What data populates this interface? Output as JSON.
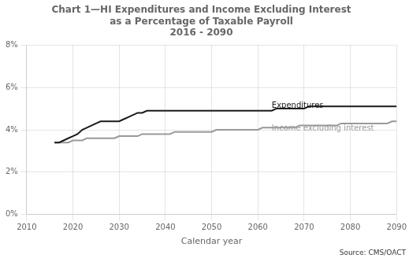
{
  "chart_data": {
    "type": "line",
    "title": [
      "Chart 1—HI Expenditures and Income Excluding Interest",
      "as a Percentage of Taxable Payroll",
      "2016 - 2090"
    ],
    "x_label": "Calendar year",
    "source": "Source: CMS/OACT",
    "x": [
      2016,
      2017,
      2018,
      2019,
      2020,
      2021,
      2022,
      2023,
      2024,
      2025,
      2026,
      2027,
      2028,
      2029,
      2030,
      2031,
      2032,
      2033,
      2034,
      2035,
      2036,
      2037,
      2038,
      2039,
      2040,
      2041,
      2042,
      2043,
      2044,
      2045,
      2046,
      2047,
      2048,
      2049,
      2050,
      2051,
      2052,
      2053,
      2054,
      2055,
      2056,
      2057,
      2058,
      2059,
      2060,
      2061,
      2062,
      2063,
      2064,
      2065,
      2066,
      2067,
      2068,
      2069,
      2070,
      2071,
      2072,
      2073,
      2074,
      2075,
      2076,
      2077,
      2078,
      2079,
      2080,
      2081,
      2082,
      2083,
      2084,
      2085,
      2086,
      2087,
      2088,
      2089,
      2090
    ],
    "series": [
      {
        "name": "Expenditures",
        "color": "#1a1a1a",
        "values": [
          0.034,
          0.034,
          0.035,
          0.036,
          0.037,
          0.038,
          0.04,
          0.041,
          0.042,
          0.043,
          0.044,
          0.044,
          0.044,
          0.044,
          0.044,
          0.045,
          0.046,
          0.047,
          0.048,
          0.048,
          0.049,
          0.049,
          0.049,
          0.049,
          0.049,
          0.049,
          0.049,
          0.049,
          0.049,
          0.049,
          0.049,
          0.049,
          0.049,
          0.049,
          0.049,
          0.049,
          0.049,
          0.049,
          0.049,
          0.049,
          0.049,
          0.049,
          0.049,
          0.049,
          0.049,
          0.049,
          0.049,
          0.049,
          0.05,
          0.05,
          0.05,
          0.05,
          0.05,
          0.05,
          0.05,
          0.051,
          0.051,
          0.051,
          0.051,
          0.051,
          0.051,
          0.051,
          0.051,
          0.051,
          0.051,
          0.051,
          0.051,
          0.051,
          0.051,
          0.051,
          0.051,
          0.051,
          0.051,
          0.051,
          0.051
        ]
      },
      {
        "name": "Income excluding interest",
        "color": "#999999",
        "values": [
          0.034,
          0.034,
          0.034,
          0.034,
          0.035,
          0.035,
          0.035,
          0.036,
          0.036,
          0.036,
          0.036,
          0.036,
          0.036,
          0.036,
          0.037,
          0.037,
          0.037,
          0.037,
          0.037,
          0.038,
          0.038,
          0.038,
          0.038,
          0.038,
          0.038,
          0.038,
          0.039,
          0.039,
          0.039,
          0.039,
          0.039,
          0.039,
          0.039,
          0.039,
          0.039,
          0.04,
          0.04,
          0.04,
          0.04,
          0.04,
          0.04,
          0.04,
          0.04,
          0.04,
          0.04,
          0.041,
          0.041,
          0.041,
          0.041,
          0.041,
          0.041,
          0.041,
          0.041,
          0.042,
          0.042,
          0.042,
          0.042,
          0.042,
          0.042,
          0.042,
          0.042,
          0.042,
          0.043,
          0.043,
          0.043,
          0.043,
          0.043,
          0.043,
          0.043,
          0.043,
          0.043,
          0.043,
          0.043,
          0.044,
          0.044
        ]
      }
    ],
    "annotations": [
      {
        "text": "Expenditures",
        "x": 2063,
        "y": 0.0505,
        "color": "#1a1a1a"
      },
      {
        "text": "Income excluding interest",
        "x": 2063,
        "y": 0.0395,
        "color": "#999999"
      }
    ],
    "xlim": [
      2010,
      2090
    ],
    "xticks": [
      2010,
      2020,
      2030,
      2040,
      2050,
      2060,
      2070,
      2080,
      2090
    ],
    "ylim": [
      0.0,
      0.08
    ],
    "yticks": [
      {
        "value": 0.0,
        "label": "0%"
      },
      {
        "value": 0.02,
        "label": "2%"
      },
      {
        "value": 0.04,
        "label": "4%"
      },
      {
        "value": 0.06,
        "label": "6%"
      },
      {
        "value": 0.08,
        "label": "8%"
      }
    ],
    "grid": true
  }
}
